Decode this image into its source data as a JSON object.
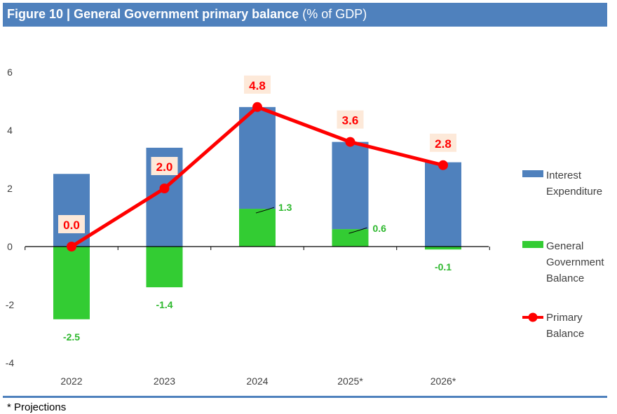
{
  "title": {
    "main": "Figure 10 | General Government primary balance",
    "unit": " (% of GDP)"
  },
  "footnote": "*  Projections",
  "colors": {
    "interest": "#4f81bd",
    "balance": "#33cc33",
    "primary": "#ff0000",
    "label_green": "#2eb82e",
    "label_box": "#fde9d9"
  },
  "chart_data": {
    "type": "bar",
    "stacked": true,
    "categories": [
      "2022",
      "2023",
      "2024",
      "2025*",
      "2026*"
    ],
    "ylim": [
      -4,
      6
    ],
    "yticks": [
      -4,
      -2,
      0,
      2,
      4,
      6
    ],
    "ytick_labels": [
      "-4",
      "-2",
      "0",
      "2",
      "4",
      "6"
    ],
    "series": [
      {
        "name": "Interest Expenditure",
        "legend_lines": [
          "Interest",
          "Expenditure"
        ],
        "kind": "bar",
        "values": [
          2.5,
          3.4,
          3.5,
          3.0,
          2.9
        ]
      },
      {
        "name": "General Government Balance",
        "legend_lines": [
          "General",
          "Government",
          "Balance"
        ],
        "kind": "bar",
        "values": [
          -2.5,
          -1.4,
          1.3,
          0.6,
          -0.1
        ],
        "labels": [
          "-2.5",
          "-1.4",
          "1.3",
          "0.6",
          "-0.1"
        ]
      },
      {
        "name": "Primary Balance",
        "legend_lines": [
          "Primary",
          "Balance"
        ],
        "kind": "line",
        "values": [
          0.0,
          2.0,
          4.8,
          3.6,
          2.8
        ],
        "labels": [
          "0.0",
          "2.0",
          "4.8",
          "3.6",
          "2.8"
        ]
      }
    ],
    "legend_position": "right"
  }
}
